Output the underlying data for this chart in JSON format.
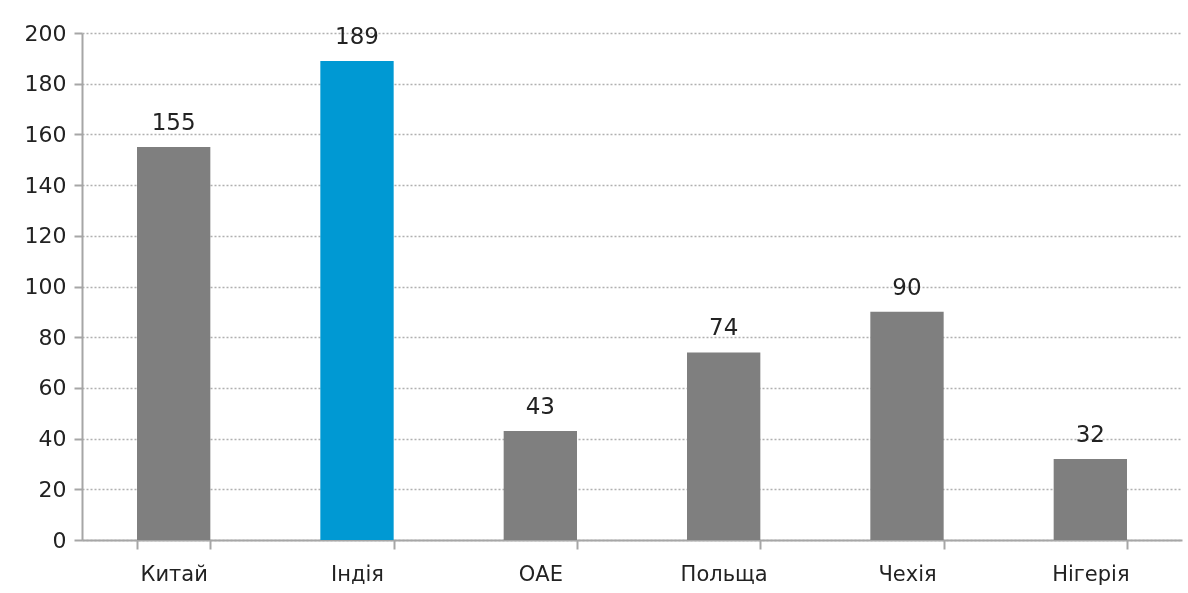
{
  "chart_data": {
    "type": "bar",
    "categories": [
      "Китай",
      "Індія",
      "ОАЕ",
      "Польща",
      "Чехія",
      "Нігерія"
    ],
    "values": [
      155,
      189,
      43,
      74,
      90,
      32
    ],
    "colors": [
      "#7f7f7f",
      "#0099d3",
      "#7f7f7f",
      "#7f7f7f",
      "#7f7f7f",
      "#7f7f7f"
    ],
    "ylim": [
      0,
      200
    ],
    "yticks": [
      0,
      20,
      40,
      60,
      80,
      100,
      120,
      140,
      160,
      180,
      200
    ],
    "grid": "y",
    "data_labels": true
  }
}
